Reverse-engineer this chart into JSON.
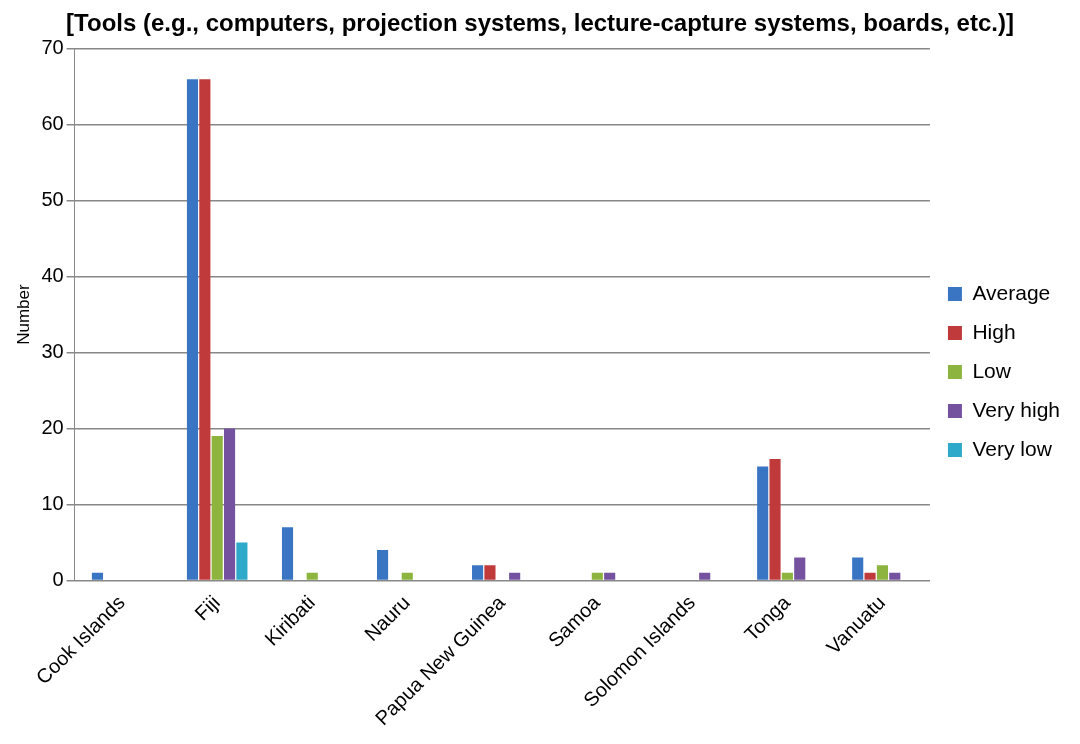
{
  "chart_data": {
    "type": "bar",
    "title": "[Tools (e.g., computers, projection systems, lecture-capture systems, boards, etc.)]",
    "ylabel": "Number",
    "categories": [
      "Cook Islands",
      "Fiji",
      "Kiribati",
      "Nauru",
      "Papua New Guinea",
      "Samoa",
      "Solomon Islands",
      "Tonga",
      "Vanuatu"
    ],
    "series": [
      {
        "name": "Average",
        "color": "#3a75c4",
        "values": [
          1,
          66,
          7,
          4,
          2,
          0,
          0,
          15,
          3
        ]
      },
      {
        "name": "High",
        "color": "#c0393b",
        "values": [
          0,
          66,
          0,
          0,
          2,
          0,
          0,
          16,
          1
        ]
      },
      {
        "name": "Low",
        "color": "#8db43f",
        "values": [
          0,
          19,
          1,
          1,
          0,
          1,
          0,
          1,
          2
        ]
      },
      {
        "name": "Very high",
        "color": "#7452a0",
        "values": [
          0,
          20,
          0,
          0,
          1,
          1,
          1,
          3,
          1
        ]
      },
      {
        "name": "Very low",
        "color": "#2fa9c9",
        "values": [
          0,
          5,
          0,
          0,
          0,
          0,
          0,
          0,
          0
        ]
      }
    ],
    "ylim": [
      0,
      70
    ],
    "yticks": [
      0,
      10,
      20,
      30,
      40,
      50,
      60,
      70
    ],
    "grid": "y",
    "legend": "right"
  }
}
